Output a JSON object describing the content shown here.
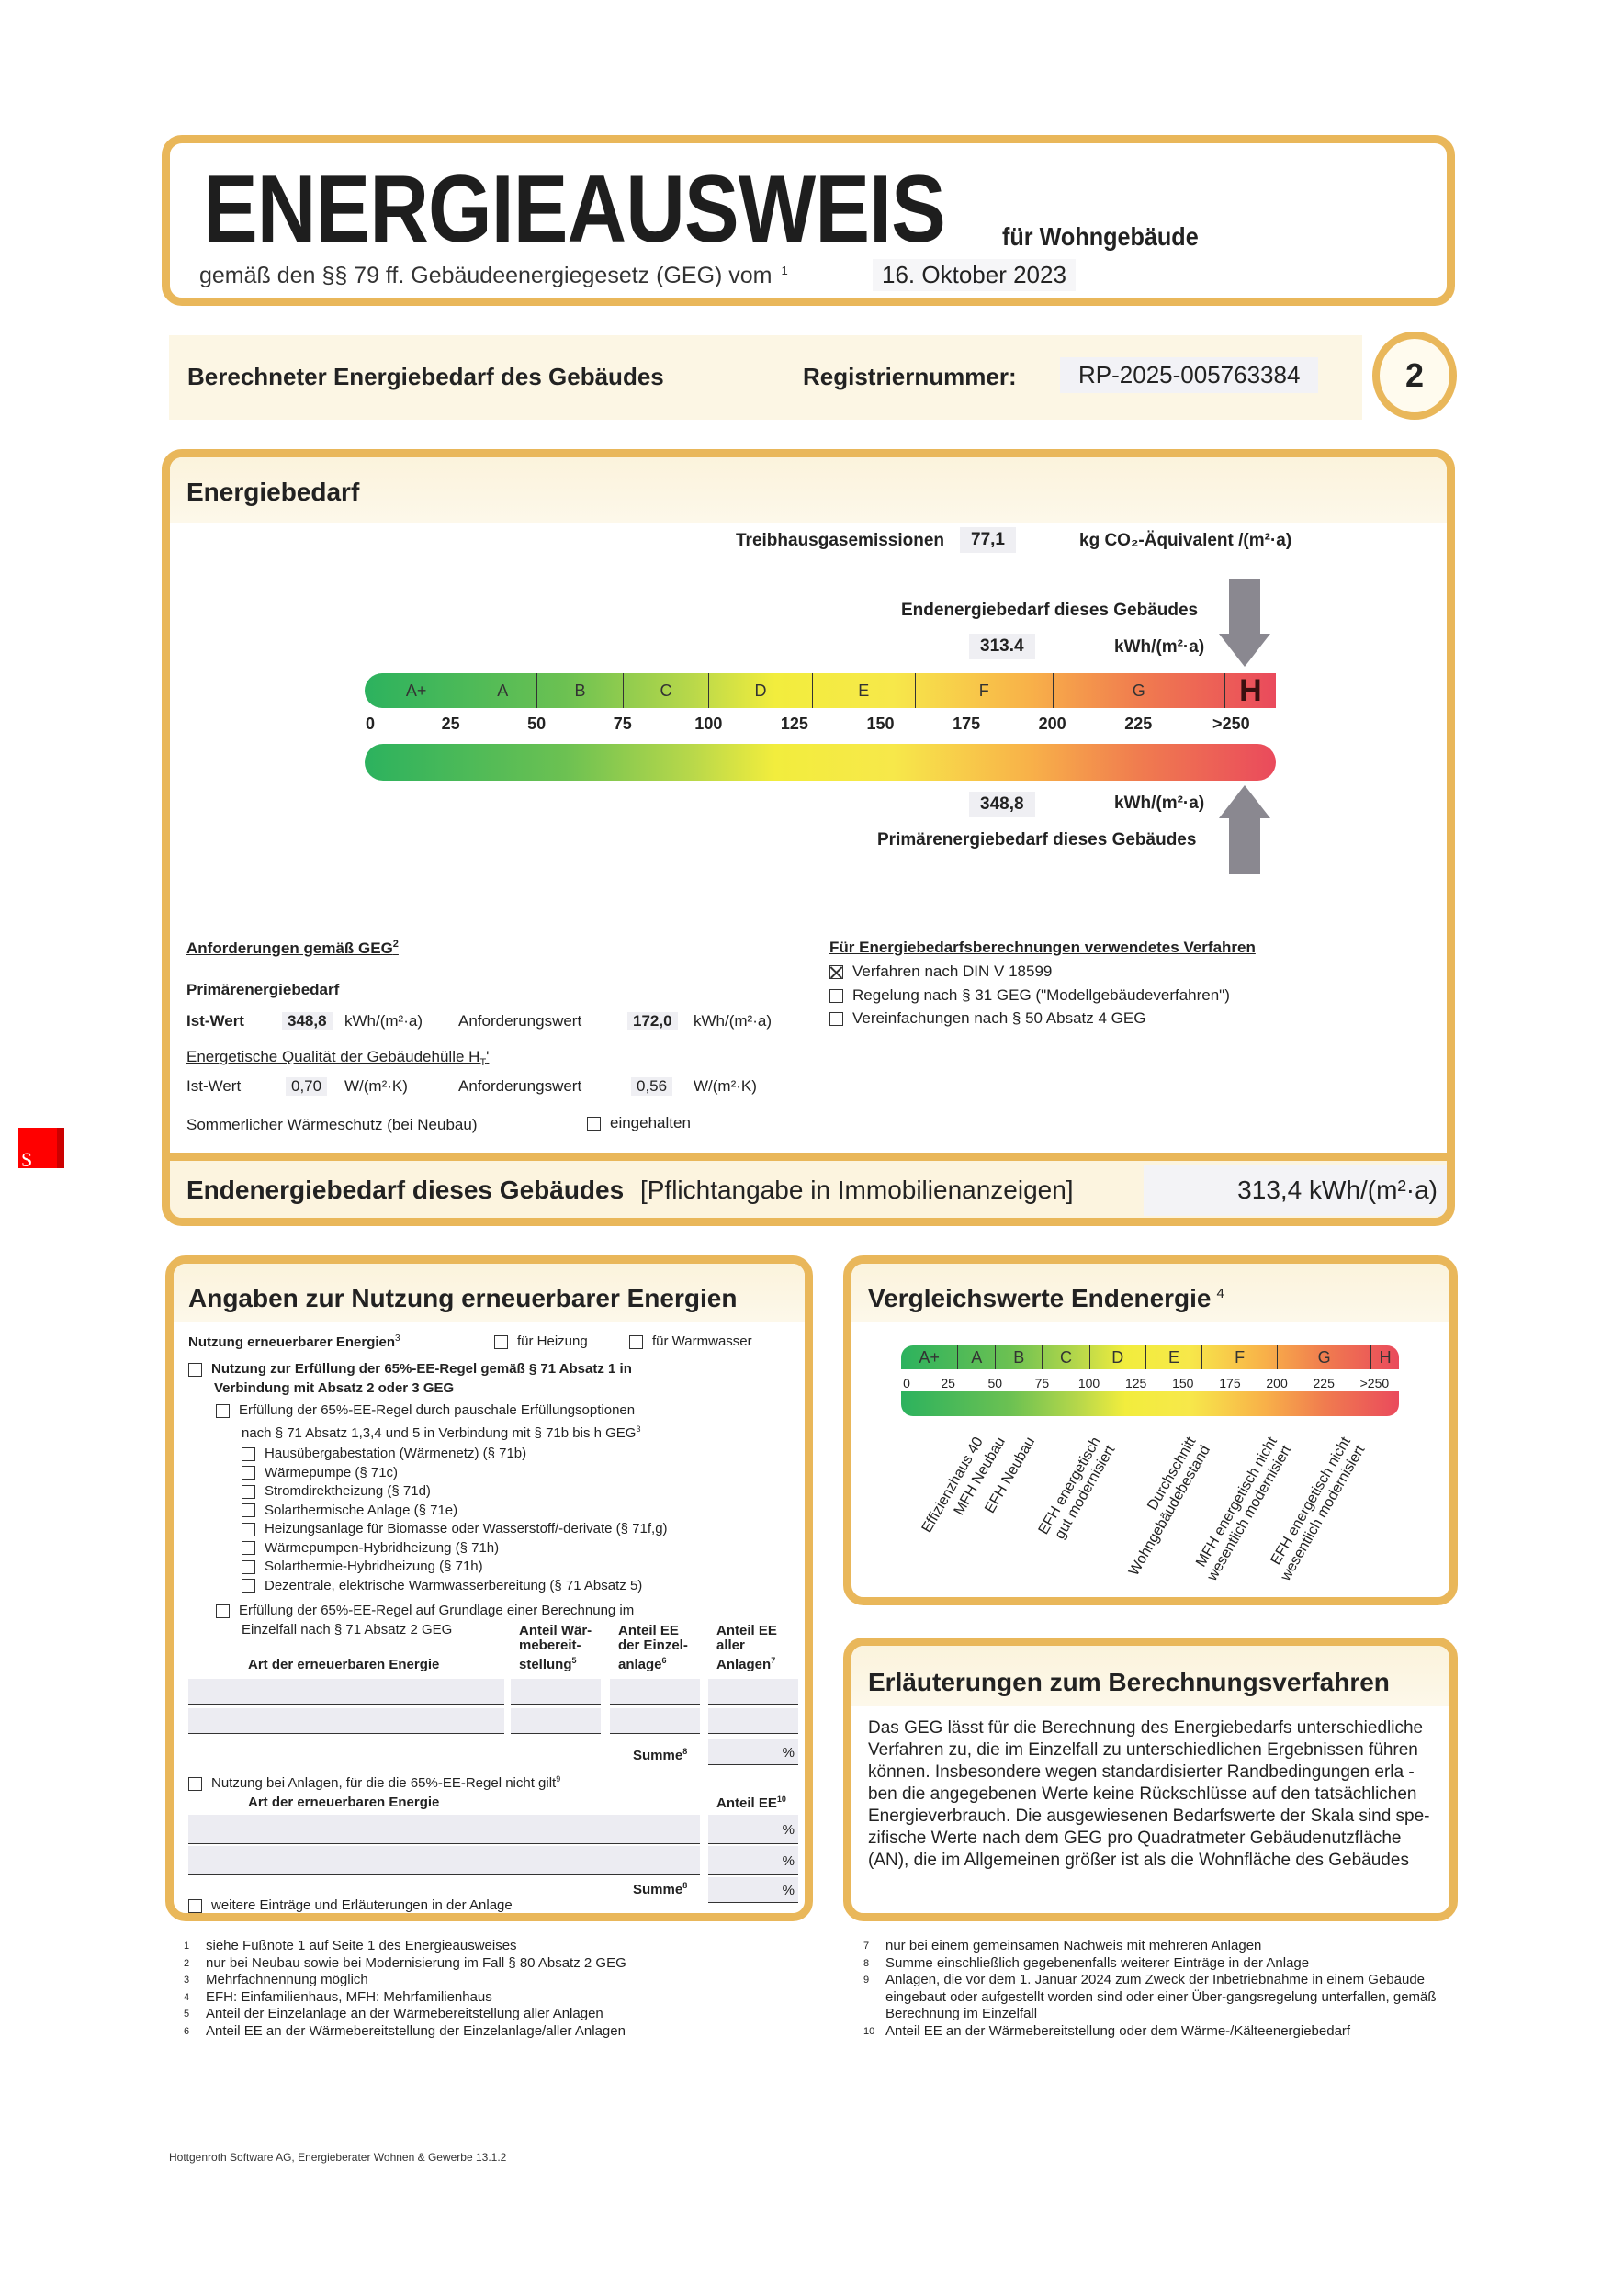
{
  "header": {
    "title": "ENERGIEAUSWEIS",
    "subtitle": "für Wohngebäude",
    "law_text": "gemäß den §§ 79 ff. Gebäudeenergiegesetz (GEG) vom",
    "law_footnote": "1",
    "law_date": "16. Oktober 2023"
  },
  "registry": {
    "section_label": "Berechneter Energiebedarf des Gebäudes",
    "reg_label": "Registriernummer:",
    "reg_number": "RP-2025-005763384",
    "page_number": "2"
  },
  "energiebedarf": {
    "title": "Energiebedarf",
    "co2_label": "Treibhausgasemissionen",
    "co2_value": "77,1",
    "co2_unit": "kg CO₂-Äquivalent /(m²·a)",
    "end_label": "Endenergiebedarf dieses Gebäudes",
    "end_value": "313.4",
    "end_unit": "kWh/(m²·a)",
    "primary_value": "348,8",
    "primary_unit": "kWh/(m²·a)",
    "primary_label": "Primärenergiebedarf dieses Gebäudes",
    "classes": [
      "A+",
      "A",
      "B",
      "C",
      "D",
      "E",
      "F",
      "G",
      "H"
    ],
    "scale_ticks": [
      "0",
      "25",
      "50",
      "75",
      "100",
      "125",
      "150",
      "175",
      "200",
      "225",
      ">250"
    ],
    "end_value_numeric": 313.4,
    "primary_value_numeric": 348.8
  },
  "requirements": {
    "title": "Anforderungen gemäß GEG",
    "title_footnote": "2",
    "primary_heading": "Primärenergiebedarf",
    "ist_label": "Ist-Wert",
    "ist_value": "348,8",
    "ist_unit": "kWh/(m²·a)",
    "req_label": "Anforderungswert",
    "req_value": "172,0",
    "req_unit": "kWh/(m²·a)",
    "ht_heading": "Energetische Qualität der Gebäudehülle H",
    "ht_sub": "T",
    "ht_ist_label": "Ist-Wert",
    "ht_ist_value": "0,70",
    "ht_unit": "W/(m²·K)",
    "ht_req_label": "Anforderungswert",
    "ht_req_value": "0,56",
    "ht_req_unit": "W/(m²·K)",
    "summer_label": "Sommerlicher Wärmeschutz (bei Neubau)",
    "summer_check": "eingehalten"
  },
  "procedure": {
    "title": "Für Energiebedarfsberechnungen verwendetes Verfahren",
    "options": [
      {
        "label": "Verfahren nach DIN V 18599",
        "checked": true
      },
      {
        "label": "Regelung nach § 31 GEG (\"Modellgebäudeverfahren\")",
        "checked": false
      },
      {
        "label": "Vereinfachungen nach § 50 Absatz 4 GEG",
        "checked": false
      }
    ]
  },
  "end_bar": {
    "label": "Endenergiebedarf dieses Gebäudes",
    "note": "[Pflichtangabe in Immobilienanzeigen]",
    "value": "313,4 kWh/(m²·a)"
  },
  "renewables": {
    "title": "Angaben zur Nutzung erneuerbarer Energien",
    "usage_label": "Nutzung erneuerbarer Energien",
    "usage_fn": "3",
    "heating": "für Heizung",
    "water": "für Warmwasser",
    "rule65": "Nutzung zur Erfüllung der 65%-EE-Regel gemäß § 71 Absatz 1 in",
    "rule65_2": "Verbindung mit Absatz 2 oder 3 GEG",
    "pauschal": "Erfüllung der 65%-EE-Regel durch pauschale Erfüllungsoptionen",
    "pauschal_2": "nach § 71 Absatz 1,3,4 und 5 in Verbindung mit § 71b bis h GEG",
    "options": [
      "Hausübergabestation (Wärmenetz) (§ 71b)",
      "Wärmepumpe (§ 71c)",
      "Stromdirektheizung (§ 71d)",
      "Solarthermische Anlage (§ 71e)",
      "Heizungsanlage für Biomasse oder Wasserstoff/-derivate (§ 71f,g)",
      "Wärmepumpen-Hybridheizung (§ 71h)",
      "Solarthermie-Hybridheizung (§ 71h)",
      "Dezentrale, elektrische Warmwasserbereitung (§ 71 Absatz 5)"
    ],
    "einzelfall": "Erfüllung der 65%-EE-Regel auf Grundlage einer Berechnung im",
    "einzelfall_2": "Einzelfall nach § 71 Absatz 2 GEG",
    "col_art": "Art der erneuerbaren Energie",
    "col_waerme": "Anteil Wär-mebereit-stellung",
    "col_waerme_fn": "5",
    "col_einzel": "Anteil EE der Einzel-anlage",
    "col_einzel_fn": "6",
    "col_alle": "Anteil EE aller Anlagen",
    "col_alle_fn": "6",
    "col_alle_fn2": "7",
    "summe": "Summe",
    "summe_fn": "8",
    "percent": "%",
    "not_applicable": "Nutzung bei Anlagen, für die die 65%-EE-Regel nicht gilt",
    "not_applicable_fn": "9",
    "col_anteil": "Anteil EE",
    "col_anteil_fn": "10",
    "further": "weitere Einträge und Erläuterungen in der Anlage"
  },
  "comparison": {
    "title": "Vergleichswerte Endenergie",
    "title_fn": "4",
    "classes": [
      "A+",
      "A",
      "B",
      "C",
      "D",
      "E",
      "F",
      "G",
      "H"
    ],
    "scale_ticks": [
      "0",
      "25",
      "50",
      "75",
      "100",
      "125",
      "150",
      "175",
      "200",
      "225",
      ">250"
    ],
    "references": [
      "Effizienzhaus 40",
      "MFH Neubau",
      "EFH Neubau",
      "EFH energetisch\ngut modernisiert",
      "Durchschnitt\nWohngebäudebestand",
      "MFH energetisch nicht\nwesentlich modernisiert",
      "EFH energetisch nicht\nwesentlich modernisiert"
    ]
  },
  "explanation": {
    "title": "Erläuterungen zum Berechnungsverfahren",
    "lines": [
      "Das GEG lässt für die Berechnung des Energiebedarfs unterschiedliche",
      "Verfahren zu, die im Einzelfall zu unterschiedlichen Ergebnissen führen",
      "können. Insbesondere wegen standardisierter Randbedingungen erla -",
      "ben die angegebenen Werte keine Rückschlüsse auf den tatsächlichen",
      "Energieverbrauch. Die ausgewiesenen Bedarfswerte der Skala sind spe-",
      "zifische Werte nach dem GEG pro Quadratmeter Gebäudenutzfläche",
      "(AN), die im Allgemeinen größer ist als die Wohnfläche des Gebäudes"
    ]
  },
  "footnotes_left": [
    {
      "n": "1",
      "text": "siehe Fußnote 1 auf Seite 1 des Energieausweises"
    },
    {
      "n": "2",
      "text": "nur bei Neubau sowie bei Modernisierung im Fall § 80 Absatz 2 GEG"
    },
    {
      "n": "3",
      "text": "Mehrfachnennung möglich"
    },
    {
      "n": "4",
      "text": "EFH: Einfamilienhaus, MFH: Mehrfamilienhaus"
    },
    {
      "n": "5",
      "text": "Anteil der Einzelanlage an der Wärmebereitstellung aller Anlagen"
    },
    {
      "n": "6",
      "text": "Anteil EE an der Wärmebereitstellung der Einzelanlage/aller Anlagen"
    }
  ],
  "footnotes_right": [
    {
      "n": "7",
      "text": "nur bei einem gemeinsamen Nachweis mit mehreren Anlagen"
    },
    {
      "n": "8",
      "text": "Summe einschließlich gegebenenfalls weiterer Einträge in der Anlage"
    },
    {
      "n": "9",
      "text": "Anlagen, die vor dem 1. Januar 2024 zum Zweck der Inbetriebnahme in einem Gebäude eingebaut oder aufgestellt worden sind oder einer Über-gangsregelung unterfallen, gemäß Berechnung im Einzelfall"
    },
    {
      "n": "10",
      "text": "Anteil EE an der Wärmebereitstellung oder dem Wärme-/Kälteenergiebedarf"
    }
  ],
  "software": "Hottgenroth Software AG, Energieberater Wohnen & Gewerbe 13.1.2",
  "side_marker": "S",
  "colors": {
    "border": "#e9b75a",
    "band": "#fbf3dc",
    "arrow": "#8a8890",
    "marker": "#ff0000"
  }
}
